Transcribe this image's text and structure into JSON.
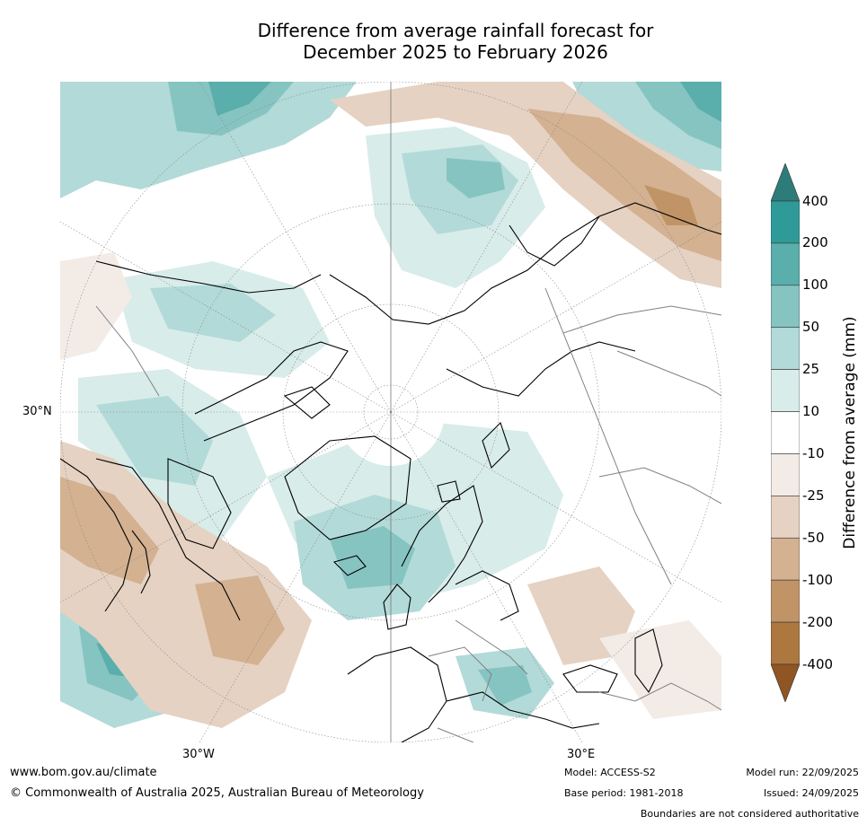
{
  "title_line1": "Difference from average rainfall forecast for",
  "title_line2": "December 2025 to February 2026",
  "lat_label": "30°N",
  "lon_labels": {
    "west": "30°W",
    "east": "30°E"
  },
  "colorbar": {
    "title": "Difference from average (mm)",
    "ticks": [
      "400",
      "200",
      "100",
      "50",
      "25",
      "10",
      "-10",
      "-25",
      "-50",
      "-100",
      "-200",
      "-400"
    ],
    "colors": [
      "#2e7c7a",
      "#2f9b98",
      "#5aaeac",
      "#86c4c2",
      "#b2dad8",
      "#d8ecea",
      "#ffffff",
      "#f3ebe6",
      "#e5d2c2",
      "#d3b191",
      "#c19467",
      "#ad7740",
      "#8f5522"
    ]
  },
  "footer": {
    "url": "www.bom.gov.au/climate",
    "copyright": "© Commonwealth of Australia 2025, Australian Bureau of Meteorology",
    "model": "Model: ACCESS-S2",
    "base_period": "Base period: 1981-2018",
    "model_run": "Model run: 22/09/2025",
    "issued": "Issued: 24/09/2025",
    "disclaimer": "Boundaries are not considered authoritative"
  }
}
